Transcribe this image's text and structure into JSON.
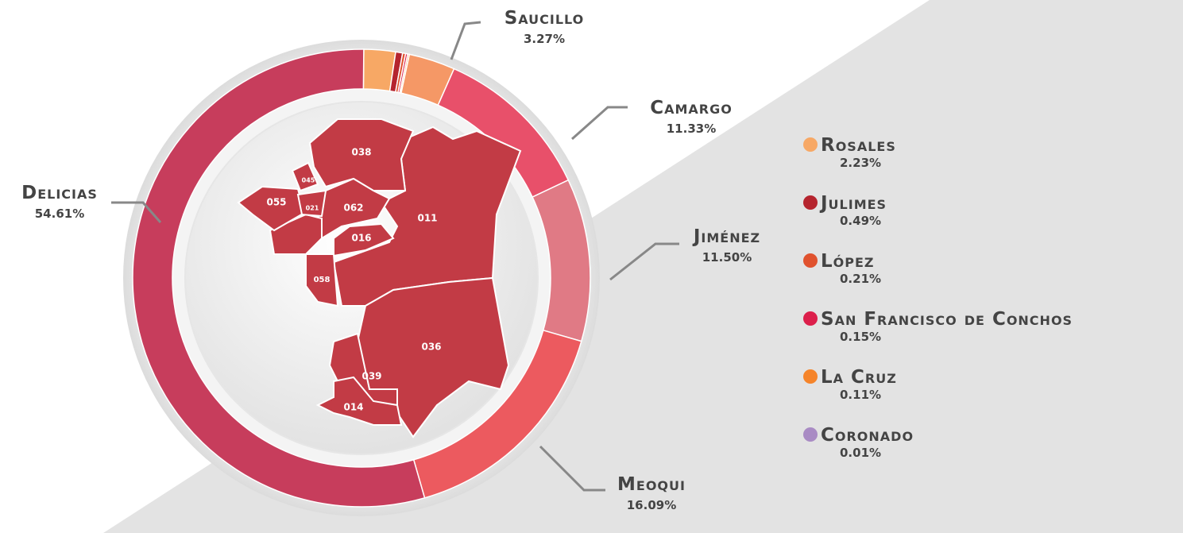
{
  "chart_data": {
    "type": "donut",
    "categories": [
      "Rosales",
      "Julimes",
      "López",
      "San Francisco de Conchos",
      "La Cruz",
      "Coronado",
      "Saucillo",
      "Camargo",
      "Jiménez",
      "Meoqui",
      "Delicias"
    ],
    "values": [
      2.23,
      0.49,
      0.21,
      0.15,
      0.11,
      0.01,
      3.27,
      11.33,
      11.5,
      16.09,
      54.61
    ],
    "value_labels": [
      "2.23%",
      "0.49%",
      "0.21%",
      "0.15%",
      "0.11%",
      "0.01%",
      "3.27%",
      "11.33%",
      "11.50%",
      "16.09%",
      "54.61%"
    ],
    "colors": [
      "#f7a865",
      "#b5242e",
      "#e0522e",
      "#dc1f4b",
      "#f5842a",
      "#a98bc4",
      "#f59866",
      "#e8506a",
      "#e07a85",
      "#ec5a5f",
      "#c73d5c"
    ]
  },
  "map": {
    "regions": [
      "038",
      "045",
      "055",
      "021",
      "062",
      "016",
      "011",
      "058",
      "036",
      "039",
      "014"
    ]
  }
}
